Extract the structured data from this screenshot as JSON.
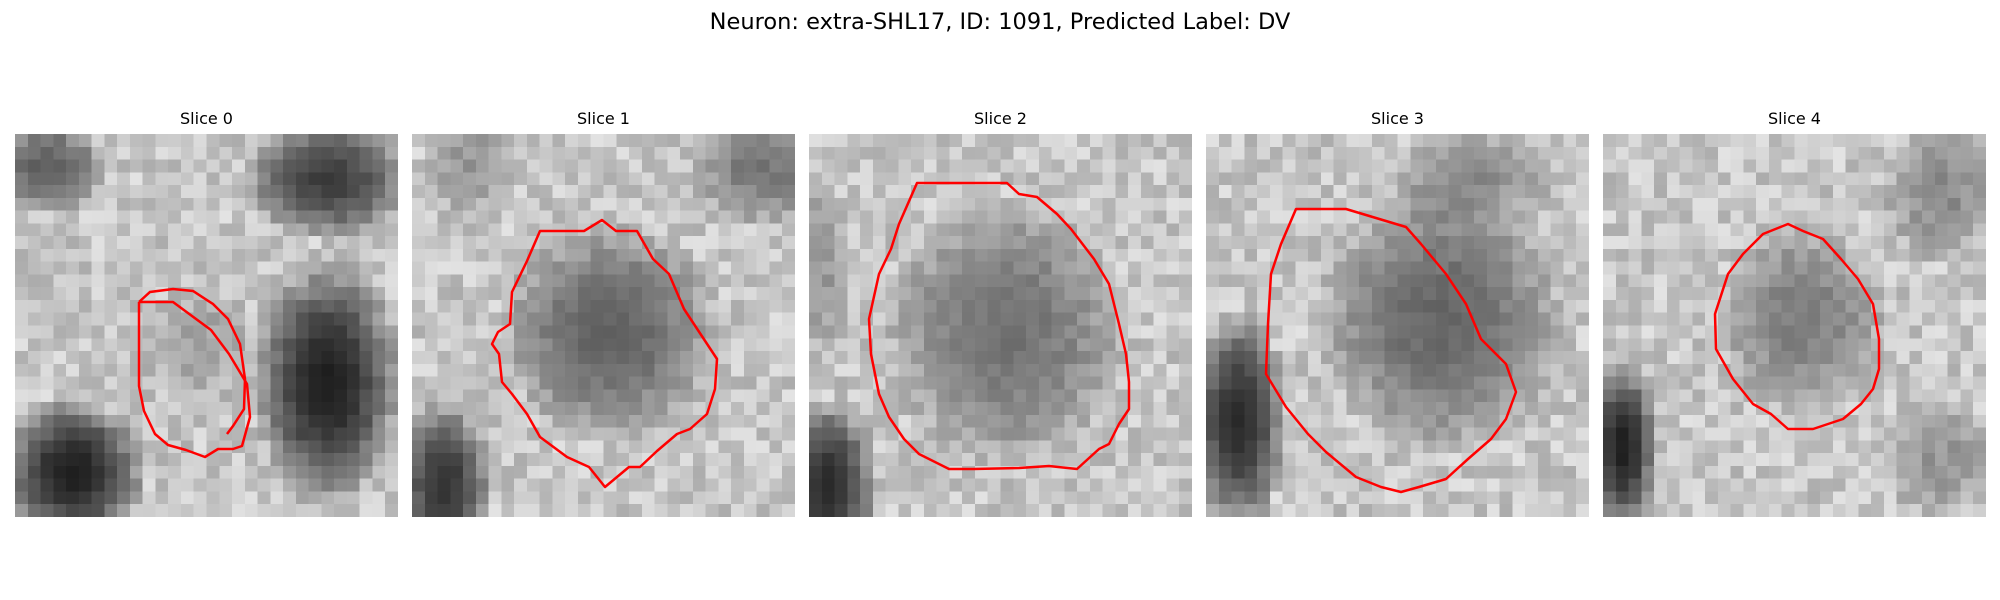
{
  "figure": {
    "suptitle": "Neuron: extra-SHL17, ID: 1091, Predicted Label: DV",
    "contour_color": "#ff0000",
    "colormap": "gray",
    "panels": [
      {
        "title": "Slice 0"
      },
      {
        "title": "Slice 1"
      },
      {
        "title": "Slice 2"
      },
      {
        "title": "Slice 3"
      },
      {
        "title": "Slice 4"
      }
    ]
  }
}
